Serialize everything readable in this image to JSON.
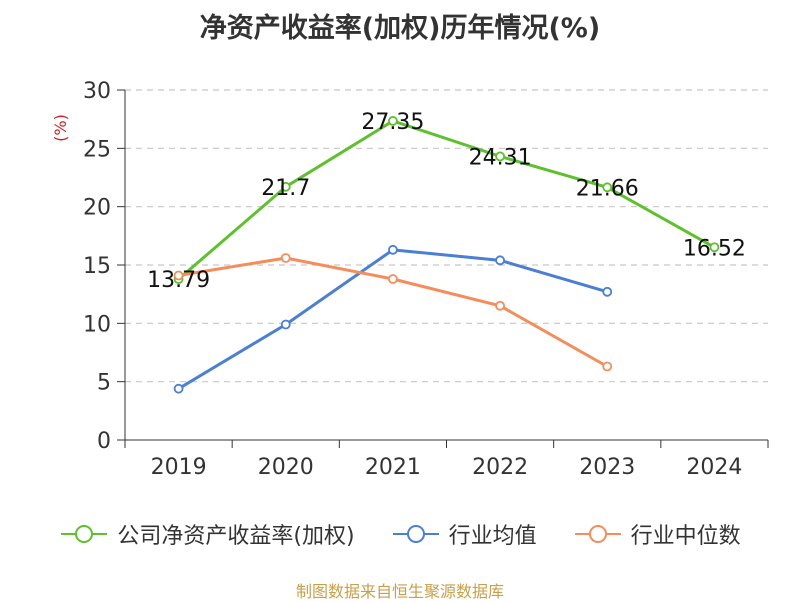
{
  "chart_data": {
    "type": "line",
    "title": "净资产收益率(加权)历年情况(%)",
    "ylabel": "(%)",
    "categories": [
      "2019",
      "2020",
      "2021",
      "2022",
      "2023",
      "2024"
    ],
    "ylim": [
      0,
      30
    ],
    "yticks": [
      0,
      5,
      10,
      15,
      20,
      25,
      30
    ],
    "grid": true,
    "legend_position": "bottom",
    "series": [
      {
        "name": "公司净资产收益率(加权)",
        "color": "#5dc12c",
        "values": [
          13.79,
          21.7,
          27.35,
          24.31,
          21.66,
          16.52
        ],
        "labels": [
          "13.79",
          "21.7",
          "27.35",
          "24.31",
          "21.66",
          "16.52"
        ]
      },
      {
        "name": "行业均值",
        "color": "#4a7fd4",
        "values": [
          4.4,
          9.9,
          16.3,
          15.4,
          12.7,
          null
        ]
      },
      {
        "name": "行业中位数",
        "color": "#f58d5a",
        "values": [
          14.1,
          15.6,
          13.8,
          11.5,
          6.3,
          null
        ]
      }
    ]
  },
  "source": "制图数据来自恒生聚源数据库"
}
